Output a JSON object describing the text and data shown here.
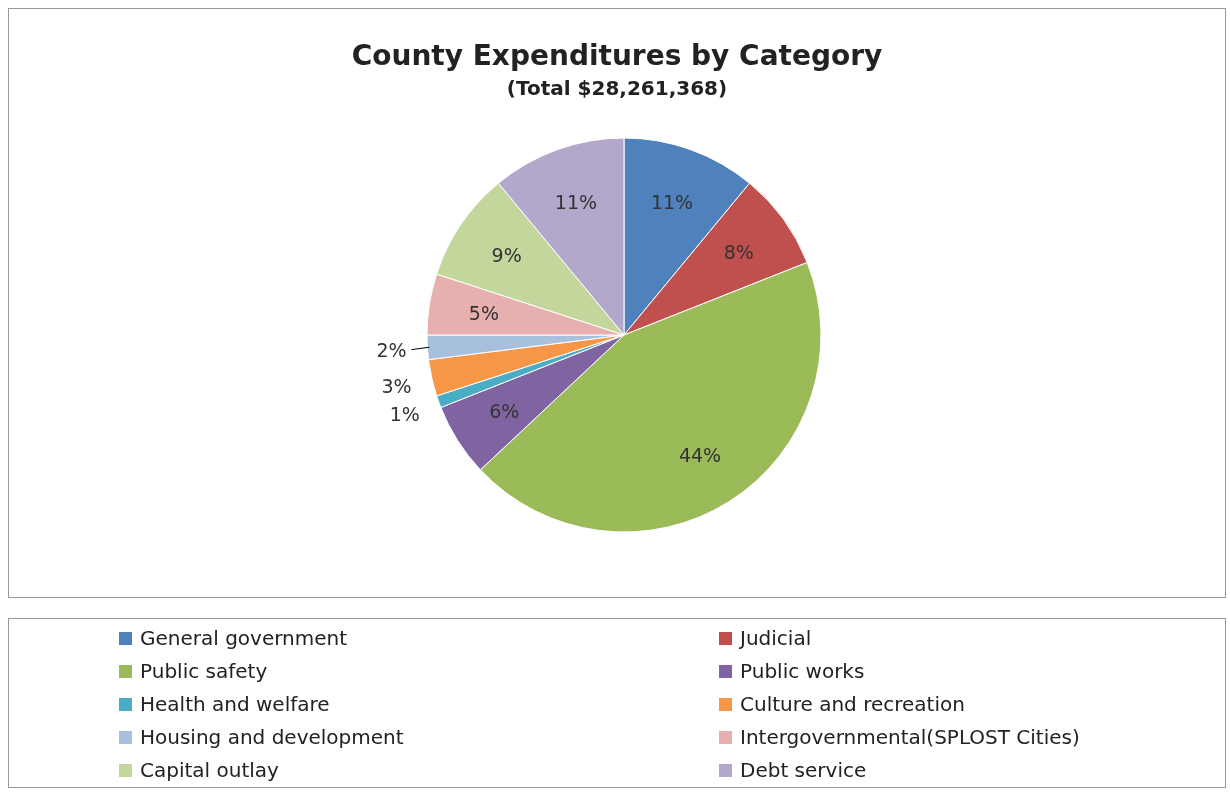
{
  "chart_data": {
    "type": "pie",
    "title": "County Expenditures by Category",
    "subtitle": "(Total $28,261,368)",
    "categories": [
      "General government",
      "Judicial",
      "Public safety",
      "Public works",
      "Health and welfare",
      "Culture and recreation",
      "Housing and development",
      "Intergovernmental(SPLOST Cities)",
      "Capital outlay",
      "Debt service"
    ],
    "values": [
      11,
      8,
      44,
      6,
      1,
      3,
      2,
      5,
      9,
      11
    ],
    "value_labels": [
      "11%",
      "8%",
      "44%",
      "6%",
      "1%",
      "3%",
      "2%",
      "5%",
      "9%",
      "11%"
    ],
    "colors": [
      "#4f81bd",
      "#c0504d",
      "#9bbb59",
      "#8064a2",
      "#4bacc6",
      "#f79646",
      "#a7c0de",
      "#e6b0ae",
      "#c3d69b",
      "#b3a8cc"
    ],
    "legend": "bottom"
  }
}
